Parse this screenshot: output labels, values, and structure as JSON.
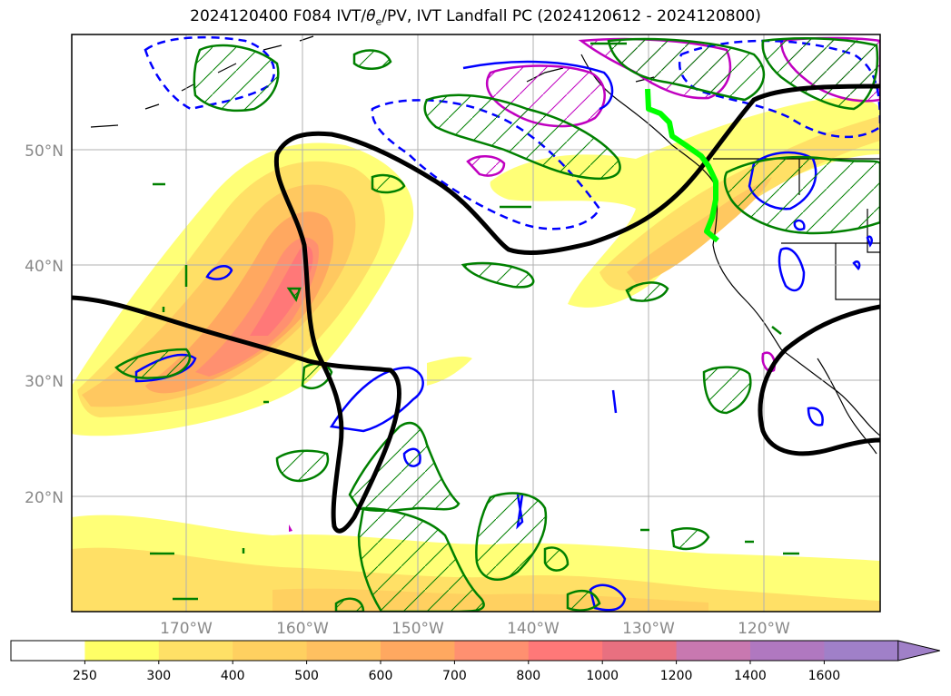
{
  "title": "2024120400 F084 IVT/θe/PV, IVT Landfall PC (2024120612 - 2024120800)",
  "title_parts": {
    "pre": "2024120400 F084 IVT/",
    "theta": "θ",
    "sub": "e",
    "post": "/PV, IVT Landfall PC (2024120612 - 2024120800)"
  },
  "map": {
    "lat_labels": [
      "50°N",
      "40°N",
      "30°N",
      "20°N"
    ],
    "lon_labels": [
      "170°W",
      "160°W",
      "150°W",
      "140°W",
      "130°W",
      "120°W"
    ],
    "contour_colors": {
      "height": "#000000",
      "pv_positive": "#008000",
      "pv_negative": "#0000ff",
      "theta_e": "#c000c0",
      "landfall": "#00ff00"
    }
  },
  "colorbar": {
    "tick_labels": [
      "250",
      "300",
      "400",
      "500",
      "600",
      "700",
      "800",
      "1000",
      "1200",
      "1400",
      "1600"
    ],
    "colors": [
      "#ffffff",
      "#ffff66",
      "#ffe066",
      "#ffd060",
      "#ffc060",
      "#ffa860",
      "#ff9070",
      "#ff7878",
      "#e87080",
      "#c878b0",
      "#b078c0",
      "#a080c8"
    ]
  }
}
